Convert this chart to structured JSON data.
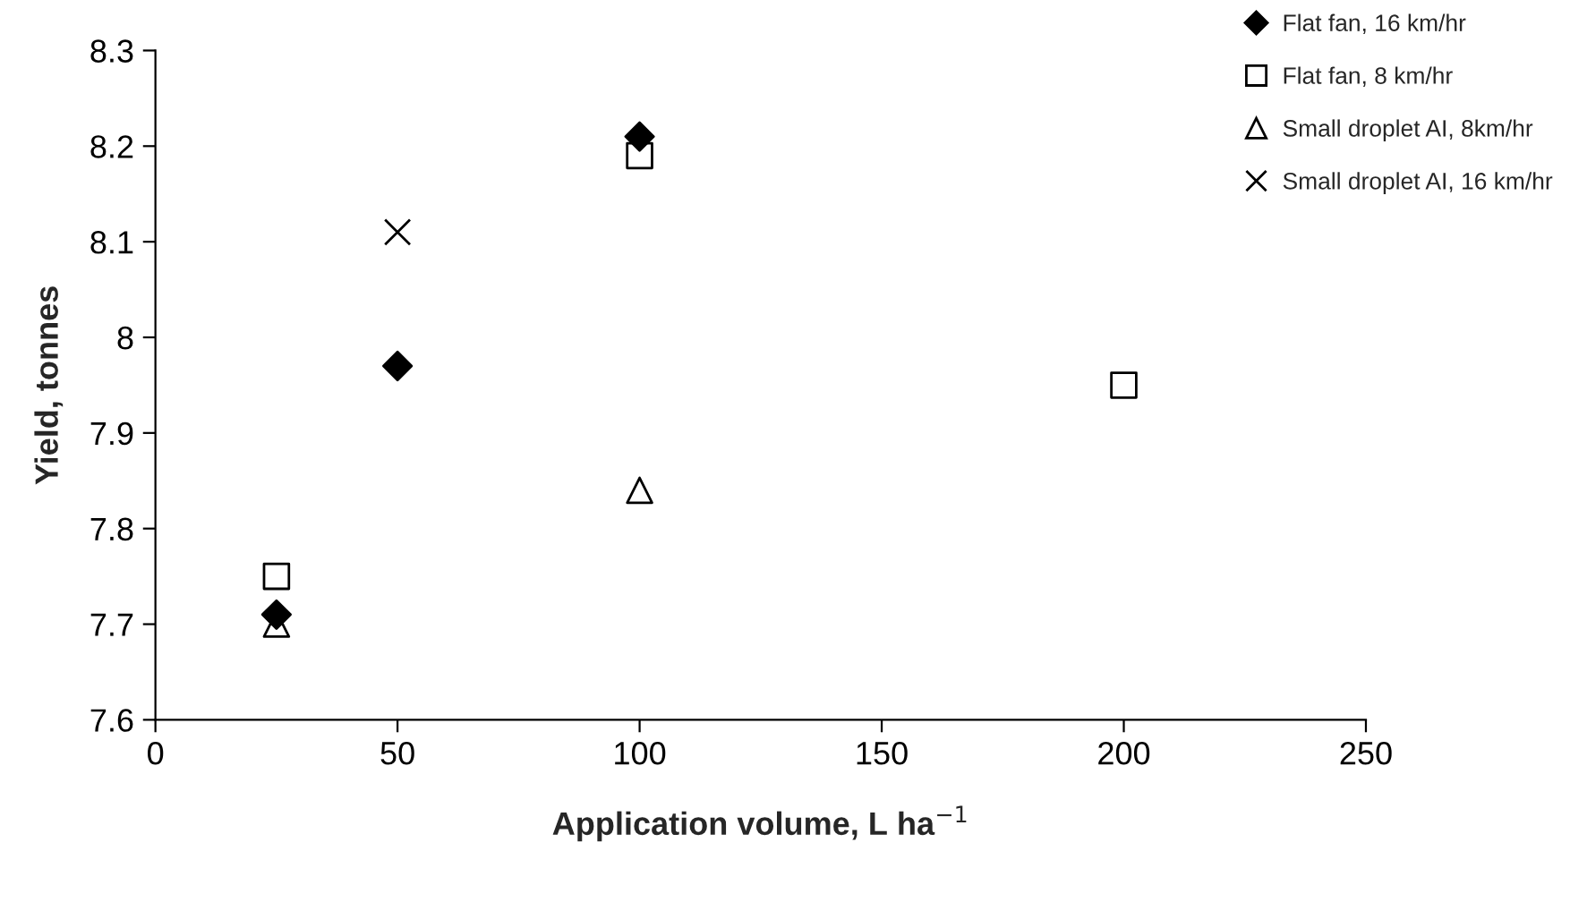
{
  "chart_data": {
    "type": "scatter",
    "xlabel": "Application volume, L ha$^{−1}$",
    "ylabel": "Yield, tonnes",
    "series": [
      {
        "name": "Flat fan, 16 km/hr",
        "color": "#000000",
        "marker": "diamond",
        "x": [
          25,
          50,
          100
        ],
        "values": [
          7.71,
          7.97,
          8.21
        ]
      },
      {
        "name": "Flat fan, 8 km/hr",
        "color": "#000000",
        "marker": "square",
        "x": [
          25,
          100,
          200
        ],
        "values": [
          7.75,
          8.19,
          7.95
        ]
      },
      {
        "name": "Small droplet AI, 8km/hr",
        "color": "#000000",
        "marker": "triangle",
        "x": [
          25,
          100
        ],
        "values": [
          7.7,
          7.84
        ]
      },
      {
        "name": "Small droplet AI, 16 km/hr",
        "color": "#000000",
        "marker": "cross",
        "x": [
          50
        ],
        "values": [
          8.11
        ]
      }
    ],
    "xlim": [
      0,
      250
    ],
    "xticks": [
      0,
      50,
      100,
      150,
      200,
      250
    ],
    "ylim": [
      7.6,
      8.3
    ],
    "yticks": [
      7.6,
      7.7,
      7.8,
      7.9,
      8,
      8.1,
      8.2,
      8.3
    ],
    "grid": false,
    "legend": "top right"
  }
}
